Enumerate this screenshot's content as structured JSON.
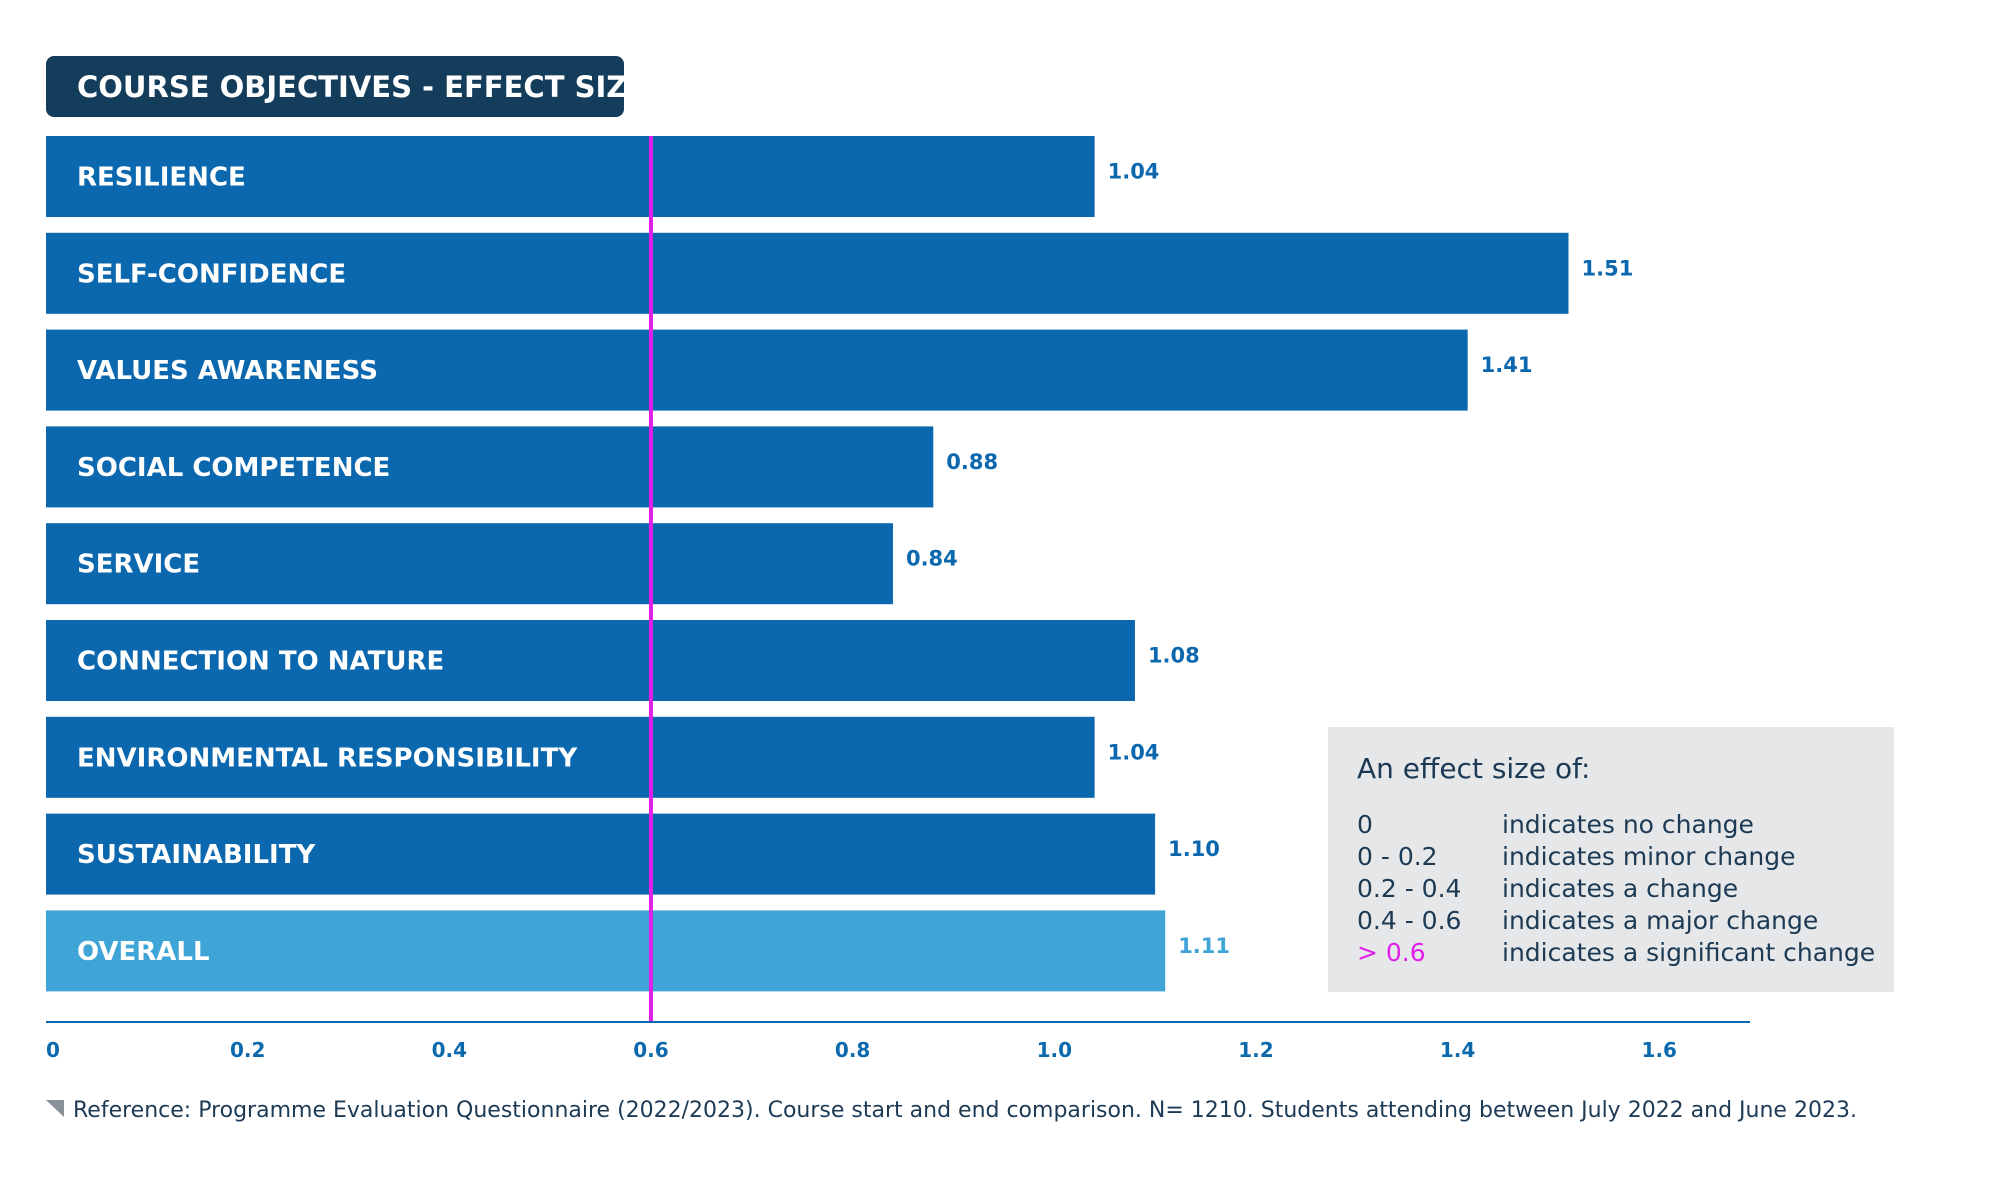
{
  "colors": {
    "title_bg": "#143d5c",
    "bar": "#0b68ae",
    "bar_overall": "#3fa4d6",
    "value_text": "#0b68ae",
    "value_text_overall": "#3fa4d6",
    "threshold_line": "#e020e8",
    "axis": "#0b68ae",
    "legend_bg": "#e6e7e8",
    "legend_highlight": "#e020e8",
    "text_dark": "#1d3a55",
    "marker": "#8a9099"
  },
  "chart_data": {
    "type": "bar",
    "orientation": "horizontal",
    "title": "COURSE OBJECTIVES - EFFECT SIZE",
    "categories": [
      "RESILIENCE",
      "SELF-CONFIDENCE",
      "VALUES AWARENESS",
      "SOCIAL COMPETENCE",
      "SERVICE",
      "CONNECTION TO NATURE",
      "ENVIRONMENTAL RESPONSIBILITY",
      "SUSTAINABILITY",
      "OVERALL"
    ],
    "values": [
      1.04,
      1.51,
      1.41,
      0.88,
      0.84,
      1.08,
      1.04,
      1.1,
      1.11
    ],
    "value_labels": [
      "1.04",
      "1.51",
      "1.41",
      "0.88",
      "0.84",
      "1.08",
      "1.04",
      "1.10",
      "1.11"
    ],
    "highlight_category": "OVERALL",
    "threshold": 0.6,
    "xlim": [
      0,
      1.69
    ],
    "xticks": [
      0,
      0.2,
      0.4,
      0.6,
      0.8,
      1.0,
      1.2,
      1.4,
      1.6
    ],
    "xtick_labels": [
      "0",
      "0.2",
      "0.4",
      "0.6",
      "0.8",
      "1.0",
      "1.2",
      "1.4",
      "1.6"
    ],
    "xlabel": "",
    "ylabel": "",
    "grid": false,
    "legend_placement": "bottom-right"
  },
  "legend_box": {
    "title": "An effect size of:",
    "rows": [
      {
        "range": "0",
        "text": "indicates no change",
        "highlight": false
      },
      {
        "range": "0 - 0.2",
        "text": "indicates minor change",
        "highlight": false
      },
      {
        "range": "0.2 - 0.4",
        "text": "indicates a change",
        "highlight": false
      },
      {
        "range": "0.4 - 0.6",
        "text": "indicates a major change",
        "highlight": false
      },
      {
        "range": "> 0.6",
        "text": "indicates a significant change",
        "highlight": true
      }
    ]
  },
  "reference": {
    "text": "Reference: Programme Evaluation Questionnaire (2022/2023). Course start and end comparison. N= 1210. Students attending between July 2022 and June 2023."
  }
}
